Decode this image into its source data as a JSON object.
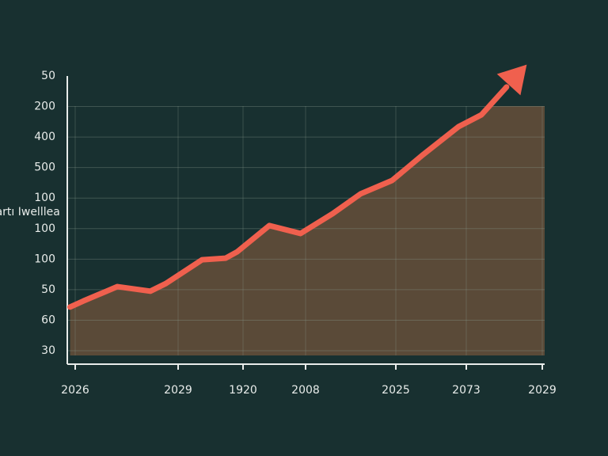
{
  "chart_data": {
    "type": "area",
    "ylabel": "Startı Iwelllea",
    "yticks": [
      {
        "value": 9,
        "label": "50"
      },
      {
        "value": 8,
        "label": "200"
      },
      {
        "value": 7,
        "label": "400"
      },
      {
        "value": 6,
        "label": "500"
      },
      {
        "value": 5,
        "label": "100"
      },
      {
        "value": 4,
        "label": "100"
      },
      {
        "value": 3,
        "label": "100"
      },
      {
        "value": 2,
        "label": "50"
      },
      {
        "value": 1,
        "label": "60"
      },
      {
        "value": 0,
        "label": "30"
      }
    ],
    "ylim": [
      0,
      9
    ],
    "xticks": [
      {
        "value": 0,
        "label": "2026"
      },
      {
        "value": 1,
        "label": "2029"
      },
      {
        "value": 2,
        "label": "1920"
      },
      {
        "value": 3,
        "label": "2008"
      },
      {
        "value": 4,
        "label": "2025"
      },
      {
        "value": 5,
        "label": "2073"
      },
      {
        "value": 6,
        "label": "2029"
      }
    ],
    "xlim": [
      0,
      6
    ],
    "grid": true,
    "series": [
      {
        "color": "#f0604e",
        "x": [
          -0.05,
          0.08,
          0.41,
          0.73,
          0.88,
          1.37,
          1.73,
          1.91,
          2.42,
          2.92,
          3.3,
          3.61,
          3.96,
          4.39,
          4.89,
          5.2,
          5.53
        ],
        "values": [
          1.43,
          1.63,
          2.1,
          1.95,
          2.2,
          2.98,
          3.03,
          3.24,
          4.1,
          3.84,
          4.49,
          5.14,
          5.58,
          6.43,
          7.34,
          7.73,
          8.64
        ]
      }
    ]
  }
}
